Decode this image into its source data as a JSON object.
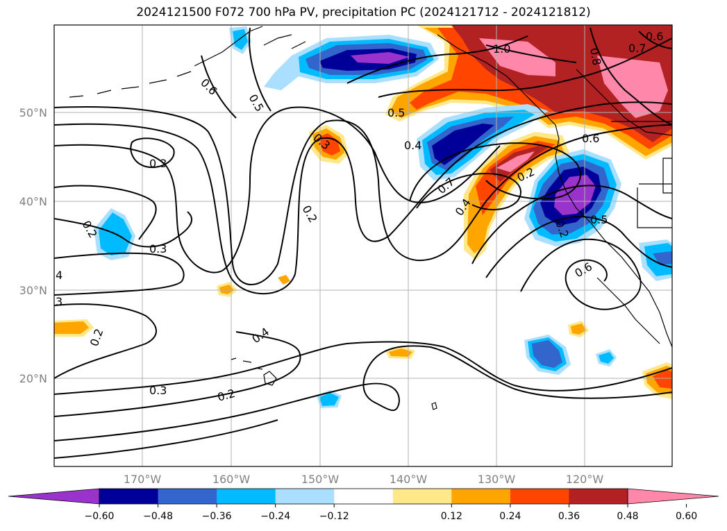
{
  "title": "2024121500 F072 700 hPa PV, precipitation PC (2024121712 - 2024121812)",
  "map": {
    "lon_labels": [
      "170°W",
      "160°W",
      "150°W",
      "140°W",
      "130°W",
      "120°W"
    ],
    "lat_labels": [
      "50°N",
      "40°N",
      "30°N",
      "20°N"
    ],
    "contour_labels": [
      "1.0",
      "0.8",
      "0.7",
      "0.6",
      "0.6",
      "0.5",
      "0.5",
      "0.4",
      "0.4",
      "0.3",
      "0.3",
      "0.3",
      "0.3",
      "0.2",
      "0.2",
      "0.2",
      "0.2",
      "0.2",
      "0.7",
      "0.4",
      "0.2",
      "0.6",
      "0.5",
      "0.6",
      "4",
      "3"
    ]
  },
  "colorbar": {
    "ticks": [
      "−0.60",
      "−0.48",
      "−0.36",
      "−0.24",
      "−0.12",
      "0.12",
      "0.24",
      "0.36",
      "0.48",
      "0.60"
    ],
    "colors": [
      "#9933cc",
      "#000099",
      "#3366cc",
      "#00bbff",
      "#aadfff",
      "#ffffff",
      "#ffe88a",
      "#ffa500",
      "#ff4500",
      "#b22222",
      "#ff88aa",
      "#ff88aa"
    ]
  }
}
